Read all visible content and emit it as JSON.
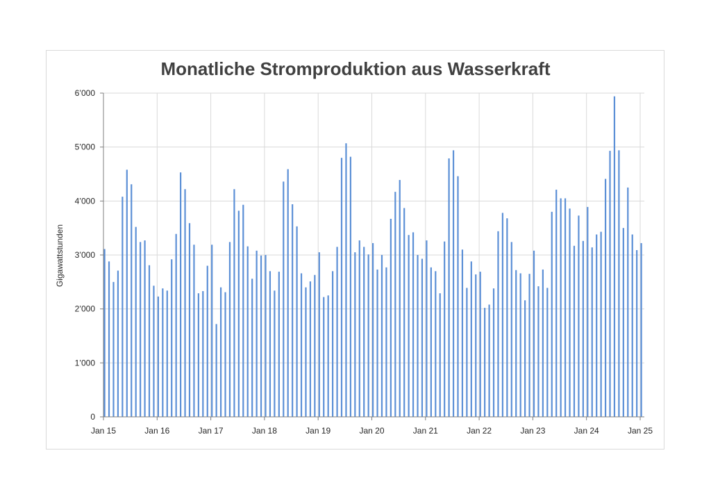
{
  "chart_data": {
    "type": "bar",
    "title": "Monatliche Stromproduktion aus Wasserkraft",
    "xlabel": "",
    "ylabel": "Gigawattstunden",
    "ylim": [
      0,
      6000
    ],
    "yticks": [
      "0",
      "1’000",
      "2’000",
      "3’000",
      "4’000",
      "5’000",
      "6’000"
    ],
    "xticks": [
      "Jan 15",
      "Jan 16",
      "Jan 17",
      "Jan 18",
      "Jan 19",
      "Jan 20",
      "Jan 21",
      "Jan 22",
      "Jan 23",
      "Jan 24",
      "Jan 25"
    ],
    "grid": true,
    "bar_color": "#5b8fd6",
    "x_start": "2015-01",
    "x_end": "2025-01",
    "values": [
      3110,
      2880,
      2500,
      2710,
      4080,
      4580,
      4310,
      3520,
      3240,
      3270,
      2810,
      2430,
      2230,
      2380,
      2340,
      2920,
      3390,
      4530,
      4220,
      3590,
      3190,
      2290,
      2330,
      2800,
      3190,
      1720,
      2400,
      2310,
      3240,
      4220,
      3820,
      3930,
      3160,
      2560,
      3080,
      2990,
      3000,
      2700,
      2340,
      2690,
      4360,
      4590,
      3940,
      3530,
      2660,
      2400,
      2510,
      2630,
      3050,
      2220,
      2250,
      2700,
      3150,
      4800,
      5070,
      4820,
      3050,
      3270,
      3150,
      3010,
      3220,
      2730,
      3000,
      2770,
      3670,
      4170,
      4390,
      3870,
      3370,
      3420,
      3000,
      2930,
      3270,
      2770,
      2700,
      2290,
      3250,
      4790,
      4940,
      4460,
      3100,
      2390,
      2880,
      2640,
      2690,
      2020,
      2080,
      2380,
      3440,
      3780,
      3680,
      3240,
      2720,
      2660,
      2160,
      2650,
      3080,
      2420,
      2730,
      2390,
      3800,
      4210,
      4050,
      4050,
      3860,
      3170,
      3730,
      3260,
      3890,
      3140,
      3380,
      3430,
      4410,
      4930,
      5940,
      4940,
      3500,
      4250,
      3380,
      3090,
      3220
    ]
  }
}
